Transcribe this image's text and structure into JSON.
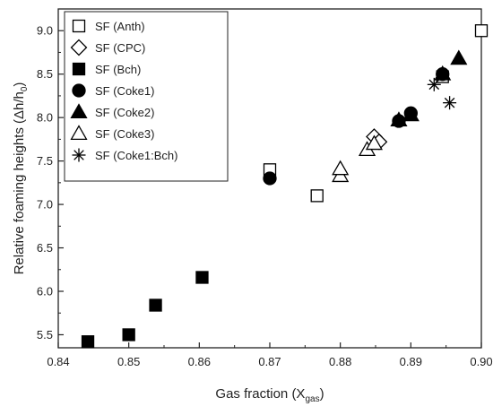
{
  "chart_data": {
    "type": "scatter",
    "xlabel": {
      "main": "Gas fraction (X",
      "sub": "gas",
      "end": ")"
    },
    "ylabel": {
      "main": "Relative foaming heights (Δh/h",
      "sub": "0",
      "end": ")"
    },
    "xlim": [
      0.84,
      0.9
    ],
    "ylim": [
      5.35,
      9.25
    ],
    "xticks": [
      0.84,
      0.85,
      0.86,
      0.87,
      0.88,
      0.89,
      0.9
    ],
    "xtick_labels": [
      "0.84",
      "0.85",
      "0.86",
      "0.87",
      "0.88",
      "0.89",
      "0.90"
    ],
    "yticks": [
      5.5,
      6.0,
      6.5,
      7.0,
      7.5,
      8.0,
      8.5,
      9.0
    ],
    "ytick_labels": [
      "5.5",
      "6.0",
      "6.5",
      "7.0",
      "7.5",
      "8.0",
      "8.5",
      "9.0"
    ],
    "grid": false,
    "legend_position": "top-left",
    "series": [
      {
        "name": "SF (Anth)",
        "marker": "square-open",
        "points": [
          [
            0.87,
            7.4
          ],
          [
            0.8767,
            7.1
          ],
          [
            0.8945,
            8.47
          ],
          [
            0.9,
            9.0
          ]
        ]
      },
      {
        "name": "SF (CPC)",
        "marker": "diamond-open",
        "points": [
          [
            0.8848,
            7.78
          ],
          [
            0.8855,
            7.72
          ]
        ]
      },
      {
        "name": "SF (Bch)",
        "marker": "square-filled",
        "points": [
          [
            0.8442,
            5.42
          ],
          [
            0.85,
            5.5
          ],
          [
            0.8538,
            5.84
          ],
          [
            0.8604,
            6.16
          ]
        ]
      },
      {
        "name": "SF (Coke1)",
        "marker": "circle-filled",
        "points": [
          [
            0.87,
            7.3
          ],
          [
            0.8883,
            7.96
          ],
          [
            0.89,
            8.05
          ],
          [
            0.8945,
            8.5
          ]
        ]
      },
      {
        "name": "SF (Coke2)",
        "marker": "triangle-filled",
        "points": [
          [
            0.8883,
            7.97
          ],
          [
            0.89,
            8.03
          ],
          [
            0.8945,
            8.5
          ],
          [
            0.8968,
            8.68
          ]
        ]
      },
      {
        "name": "SF (Coke3)",
        "marker": "triangle-open",
        "points": [
          [
            0.88,
            7.33
          ],
          [
            0.88,
            7.41
          ],
          [
            0.8838,
            7.63
          ],
          [
            0.8848,
            7.7
          ]
        ]
      },
      {
        "name": "SF (Coke1:Bch)",
        "marker": "asterisk",
        "points": [
          [
            0.8933,
            8.38
          ],
          [
            0.8955,
            8.17
          ]
        ]
      }
    ]
  }
}
